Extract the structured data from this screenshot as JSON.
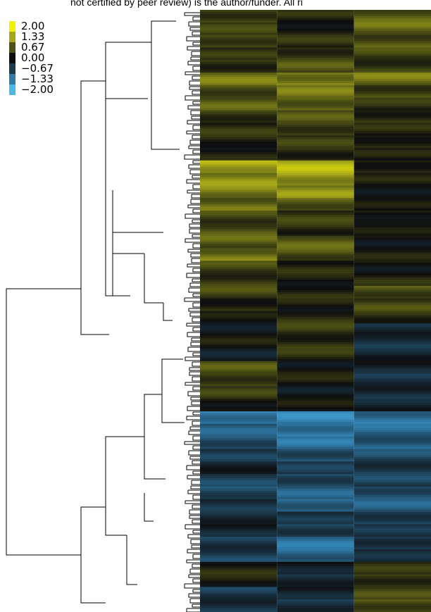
{
  "header": {
    "text": "not certified by peer review) is the author/funder. All ri"
  },
  "legend": {
    "items": [
      {
        "label": "2.00",
        "color": "#f2f200"
      },
      {
        "label": "1.33",
        "color": "#a6a61a"
      },
      {
        "label": "0.67",
        "color": "#4d5214"
      },
      {
        "label": "0.00",
        "color": "#0d0d0d"
      },
      {
        "label": "−0.67",
        "color": "#1b3a4e"
      },
      {
        "label": "−1.33",
        "color": "#2f7aa8"
      },
      {
        "label": "−2.00",
        "color": "#4fb8e8"
      }
    ]
  },
  "chart_data": {
    "type": "heatmap",
    "title": "",
    "color_scale": {
      "min": -2.0,
      "max": 2.0,
      "stops": [
        {
          "value": -2.0,
          "color": "#4fb8e8"
        },
        {
          "value": -1.33,
          "color": "#2f7aa8"
        },
        {
          "value": -0.67,
          "color": "#1b3a4e"
        },
        {
          "value": 0.0,
          "color": "#0d0d0d"
        },
        {
          "value": 0.67,
          "color": "#4d5214"
        },
        {
          "value": 1.33,
          "color": "#a6a61a"
        },
        {
          "value": 2.0,
          "color": "#f2f200"
        }
      ]
    },
    "columns": 3,
    "rows_shown": 48,
    "column_values": [
      [
        0.5,
        0.45,
        0.55,
        0.3,
        0.35,
        0.9,
        0.6,
        0.7,
        0.4,
        0.3,
        0.2,
        0.1,
        1.3,
        1.1,
        1.0,
        0.8,
        0.5,
        0.6,
        0.7,
        0.9,
        0.5,
        0.4,
        0.5,
        0.2,
        0.0,
        -0.1,
        0.05,
        -0.2,
        0.6,
        0.5,
        0.4,
        0.1,
        -1.3,
        -1.0,
        -0.9,
        -0.6,
        -0.3,
        -0.7,
        -0.8,
        -0.5,
        -0.4,
        -0.3,
        -0.6,
        -0.7,
        0.2,
        0.1,
        -0.6,
        -0.5
      ],
      [
        0.2,
        0.1,
        0.3,
        0.4,
        0.6,
        1.0,
        0.9,
        0.8,
        0.6,
        0.5,
        0.4,
        0.3,
        1.4,
        1.2,
        1.1,
        0.7,
        0.4,
        0.3,
        0.7,
        0.6,
        0.2,
        0.1,
        0.2,
        0.1,
        0.3,
        0.4,
        0.3,
        0.3,
        0.0,
        0.1,
        -0.1,
        0.0,
        -1.4,
        -1.3,
        -1.2,
        -0.9,
        -0.6,
        -0.8,
        -1.0,
        -1.1,
        -0.5,
        -0.7,
        -1.2,
        -1.1,
        -0.2,
        -0.4,
        -0.3,
        -0.5
      ],
      [
        0.7,
        0.8,
        0.6,
        0.5,
        0.4,
        0.9,
        0.5,
        0.3,
        0.3,
        0.2,
        0.2,
        0.1,
        0.2,
        0.1,
        0.0,
        0.0,
        0.1,
        0.0,
        0.0,
        0.1,
        0.0,
        0.2,
        0.6,
        0.5,
        0.3,
        -0.4,
        -0.5,
        -0.3,
        -0.3,
        -0.5,
        -0.4,
        -0.3,
        -1.2,
        -1.1,
        -1.0,
        -0.8,
        -0.6,
        -0.7,
        -0.9,
        -1.0,
        -0.7,
        -0.5,
        -0.6,
        -0.4,
        0.3,
        0.4,
        0.5,
        0.6
      ]
    ]
  }
}
